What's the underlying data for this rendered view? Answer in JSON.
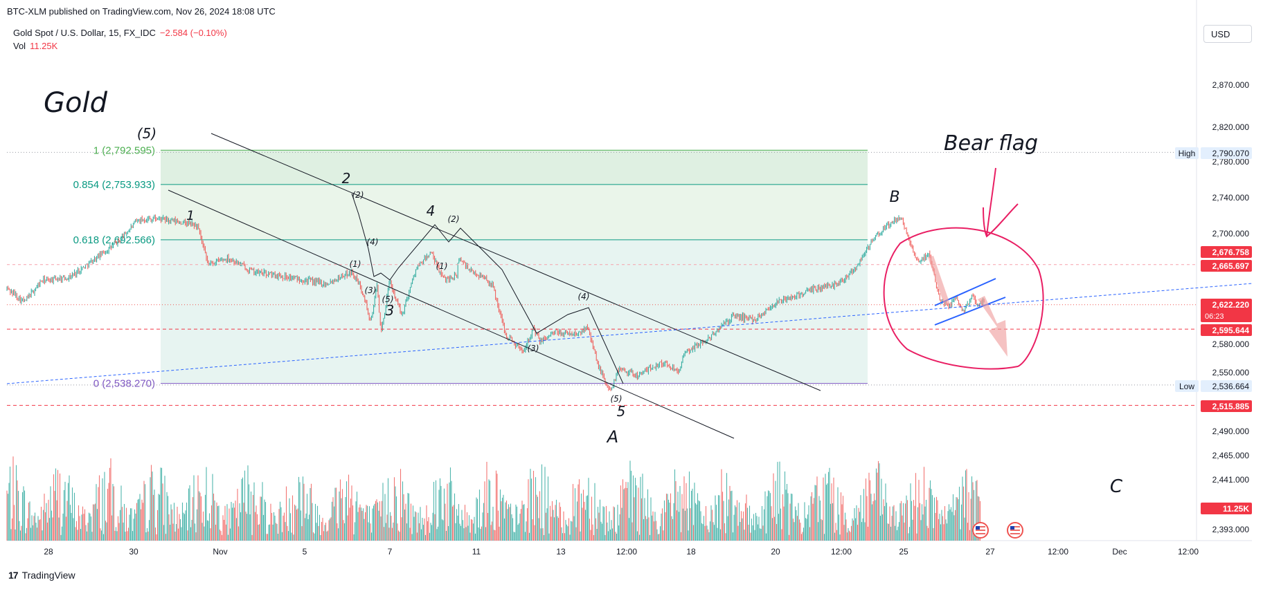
{
  "header": {
    "published": "BTC-XLM published on TradingView.com, Nov 26, 2024 18:08 UTC",
    "symbol": "Gold Spot / U.S. Dollar, 15, FX_IDC",
    "change": "−2.584 (−0.10%)",
    "vol_label": "Vol",
    "vol_value": "11.25K",
    "currency_button": "USD"
  },
  "footer": {
    "brand": "TradingView",
    "logo_icon": "tradingview-logo-icon"
  },
  "chart_data": {
    "type": "candlestick",
    "price_range": [
      2375,
      2905
    ],
    "y_ticks": [
      "2,870.000",
      "2,820.000",
      "2,780.000",
      "2,740.000",
      "2,700.000",
      "2,580.000",
      "2,550.000",
      "2,490.000",
      "2,465.000",
      "2,441.000",
      "2,393.000"
    ],
    "x_ticks": [
      "28",
      "30",
      "Nov",
      "5",
      "7",
      "11",
      "13",
      "12:00",
      "18",
      "20",
      "12:00",
      "25",
      "27",
      "12:00",
      "Dec",
      "12:00"
    ],
    "price_tags": [
      {
        "label": "High",
        "value": "2,790.070",
        "price": 2790.07,
        "bg": "#e3effd",
        "fg": "#131722"
      },
      {
        "label": "",
        "value": "2,676.758",
        "price": 2676.758,
        "bg": "#f23645",
        "fg": "#ffffff"
      },
      {
        "label": "",
        "value": "2,665.697",
        "price": 2665.697,
        "bg": "#f23645",
        "fg": "#ffffff"
      },
      {
        "label": "",
        "value": "2,622.220",
        "sub": "06:23",
        "price": 2622.22,
        "bg": "#f23645",
        "fg": "#ffffff"
      },
      {
        "label": "",
        "value": "2,595.644",
        "price": 2595.644,
        "bg": "#f23645",
        "fg": "#ffffff"
      },
      {
        "label": "Low",
        "value": "2,536.664",
        "price": 2536.664,
        "bg": "#e3effd",
        "fg": "#131722"
      },
      {
        "label": "",
        "value": "2,515.885",
        "price": 2515.885,
        "bg": "#f23645",
        "fg": "#ffffff"
      },
      {
        "label": "",
        "value": "11.25K",
        "price": 2412,
        "bg": "#f23645",
        "fg": "#ffffff"
      }
    ],
    "fib_levels": [
      {
        "ratio": "1",
        "label": "1 (2,792.595)",
        "price": 2792.595,
        "color": "#4caf50"
      },
      {
        "ratio": "0.854",
        "label": "0.854 (2,753.933)",
        "price": 2753.933,
        "color": "#089981"
      },
      {
        "ratio": "0.618",
        "label": "0.618 (2,692.566)",
        "price": 2692.566,
        "color": "#089981"
      },
      {
        "ratio": "0",
        "label": "0 (2,538.270)",
        "price": 2538.27,
        "color": "#7e57c2"
      }
    ],
    "wave_labels": [
      {
        "text": "Gold",
        "size": "title"
      },
      {
        "text": "(5)",
        "size": "large"
      },
      {
        "text": "1",
        "size": "large"
      },
      {
        "text": "2",
        "size": "large"
      },
      {
        "text": "3",
        "size": "large"
      },
      {
        "text": "4",
        "size": "large"
      },
      {
        "text": "5",
        "size": "large"
      },
      {
        "text": "A",
        "size": "large"
      },
      {
        "text": "B",
        "size": "large"
      },
      {
        "text": "C",
        "size": "large"
      },
      {
        "text": "(2)",
        "size": "small"
      },
      {
        "text": "(4)",
        "size": "small"
      },
      {
        "text": "(1)",
        "size": "small"
      },
      {
        "text": "(3)",
        "size": "small"
      },
      {
        "text": "(5)",
        "size": "small"
      },
      {
        "text": "(2)",
        "size": "small"
      },
      {
        "text": "(1)",
        "size": "small"
      },
      {
        "text": "(3)",
        "size": "small"
      },
      {
        "text": "(4)",
        "size": "small"
      },
      {
        "text": "(5)",
        "size": "small"
      }
    ],
    "annotations": [
      "Bear flag"
    ],
    "colors": {
      "up": "#26a69a",
      "down": "#ef5350",
      "fib_fill": "#e8f5e9",
      "trend": "#2962ff",
      "marker": "#e91e63"
    }
  }
}
